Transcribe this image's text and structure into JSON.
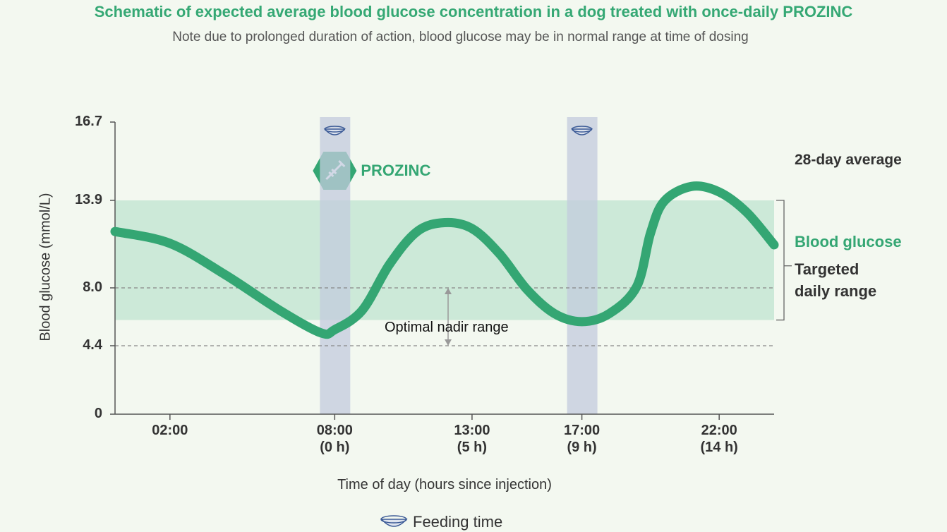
{
  "chart_data": {
    "type": "line",
    "title": "Schematic of expected average blood glucose concentration in a dog treated with once-daily PROZINC",
    "subtitle": "Note due to prolonged duration of action, blood glucose may be in normal range at time of dosing",
    "ylabel": "Blood glucose  (mmol/L)",
    "xlabel": "Time of day (hours since injection)",
    "legend_title": "28-day average",
    "xlim": [
      0,
      24
    ],
    "xticks": [
      {
        "value": 2,
        "label": "02:00"
      },
      {
        "value": 8,
        "label": "08:00\n(0 h)"
      },
      {
        "value": 13,
        "label": "13:00\n(5 h)"
      },
      {
        "value": 17,
        "label": "17:00\n(9 h)"
      },
      {
        "value": 22,
        "label": "22:00\n(14 h)"
      }
    ],
    "ylim": [
      0,
      16.7
    ],
    "yticks": [
      0,
      4.4,
      {
        "value": 8,
        "label": "8.0"
      },
      13.9,
      16.7
    ],
    "series": [
      {
        "name": "Blood glucose",
        "color": "#34a673",
        "x": [
          0,
          2,
          4,
          6,
          7.5,
          8,
          9,
          10,
          11,
          12,
          13,
          14,
          15,
          16,
          17,
          18,
          19,
          19.5,
          20,
          21,
          22,
          23,
          24
        ],
        "values": [
          11.8,
          11.0,
          8.9,
          6.6,
          5.2,
          5.4,
          6.6,
          9.6,
          11.8,
          12.4,
          12.0,
          10.3,
          7.9,
          6.4,
          5.9,
          6.4,
          8.1,
          11.7,
          13.85,
          14.4,
          14.2,
          13.1,
          10.9
        ]
      }
    ],
    "target_range": {
      "label": "Targeted\ndaily range",
      "values": [
        6.0,
        13.9
      ],
      "color": "#c4e6d3"
    },
    "nadir_range": {
      "label": "Optimal nadir range",
      "values": [
        4.4,
        8
      ]
    },
    "injection": {
      "label": "PROZINC",
      "x": 8
    },
    "feeding": {
      "label": "Feeding time",
      "x": [
        8,
        17
      ],
      "color": "#c3cbdd"
    }
  }
}
